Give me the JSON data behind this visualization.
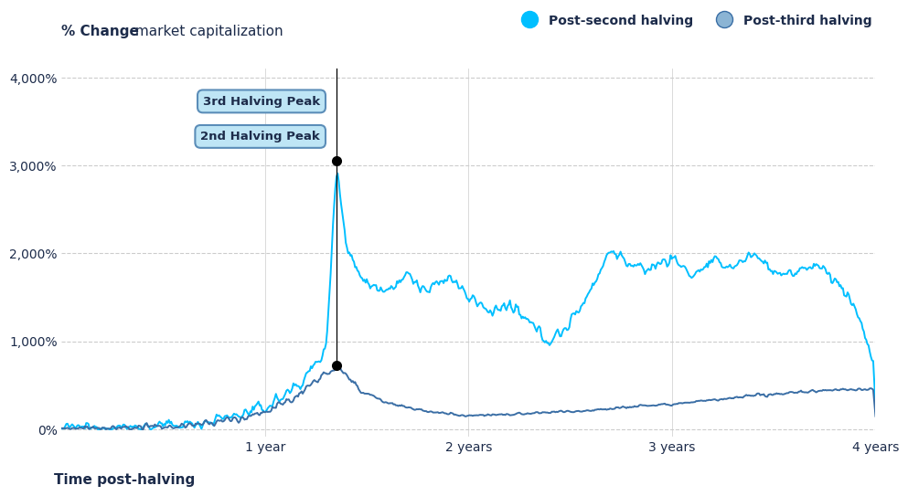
{
  "title_bold": "% Change",
  "title_regular": " market capitalization",
  "xlabel": "Time post-halving",
  "legend_label_1": "Post-second halving",
  "legend_label_2": "Post-third halving",
  "annotation_1": "2nd Halving Peak",
  "annotation_2": "3rd Halving Peak",
  "color_line1": "#00BFFF",
  "color_line2": "#3A6EA5",
  "color_annotation_bg": "#BEE5F5",
  "color_annotation_border": "#5B8DB8",
  "background_color": "#FFFFFF",
  "grid_color": "#CCCCCC",
  "title_color": "#1C2B4A",
  "ylim": [
    0,
    4000
  ],
  "xlim": [
    0,
    4.0
  ],
  "yticks": [
    0,
    1000,
    2000,
    3000,
    4000
  ],
  "xticks": [
    1,
    2,
    3,
    4
  ],
  "xtick_labels": [
    "1 year",
    "2 years",
    "3 years",
    "4 years"
  ],
  "peak_x": 1.35,
  "peak_y_2nd": 3050,
  "peak_y_3rd": 730
}
